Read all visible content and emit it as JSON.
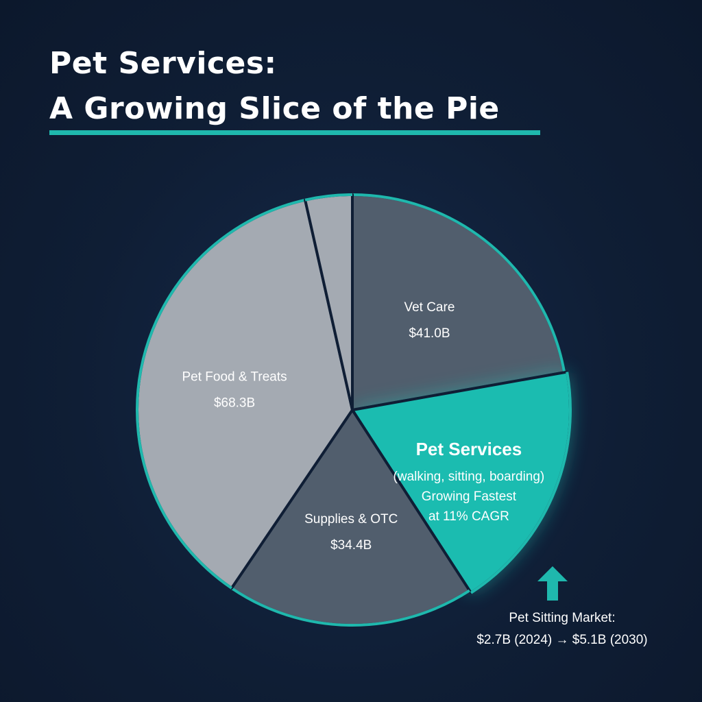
{
  "title": {
    "line1": "Pet Services:",
    "line2": "A Growing Slice  of the Pie"
  },
  "colors": {
    "accent": "#1fb8ad",
    "background": "#0f1e35",
    "light_slice": "#a4aab2",
    "dark_slice": "#515e6d",
    "highlight_slice": "#1bbcb0"
  },
  "chart_data": {
    "type": "pie",
    "title": "Pet Services: A Growing Slice  of the Pie",
    "unit": "$B",
    "slices": [
      {
        "label": "Vet Care",
        "value_label": "$41.0B",
        "value": 41.0,
        "color": "#515e6d",
        "highlight": false,
        "extra_lines": []
      },
      {
        "label": "Pet Services",
        "value_label": "",
        "value": 34.4,
        "color": "#1bbcb0",
        "highlight": true,
        "extra_lines": [
          "(walking, sitting, boarding)",
          "Growing Fastest",
          "at 11% CAGR"
        ]
      },
      {
        "label": "Supplies & OTC",
        "value_label": "$34.4B",
        "value": 34.4,
        "color": "#515e6d",
        "highlight": false,
        "extra_lines": []
      },
      {
        "label": "Pet Food & Treats",
        "value_label": "$68.3B",
        "value": 68.3,
        "color": "#a4aab2",
        "highlight": false,
        "extra_lines": []
      },
      {
        "label": "",
        "value_label": "",
        "value": 6.5,
        "color": "#a4aab2",
        "highlight": false,
        "extra_lines": []
      }
    ],
    "annotation": {
      "line1": "Pet Sitting Market:",
      "line2": "$2.7B (2024) → $5.1B (2030)",
      "icon": "up-arrow-icon"
    }
  }
}
